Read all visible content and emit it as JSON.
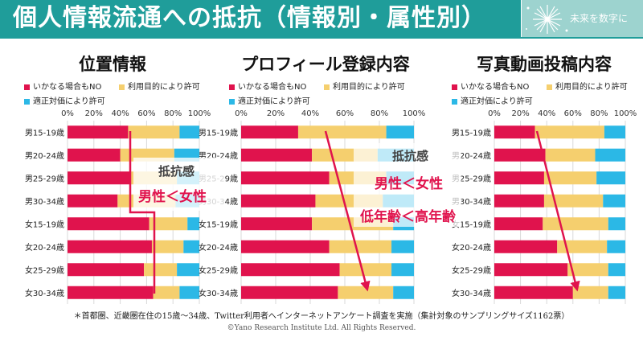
{
  "header": {
    "title": "個人情報流通への抵抗（情報別・属性別）",
    "logo_text": "未来を数字に"
  },
  "colors": {
    "brand": "#1f9d9a",
    "logo_bg": "#9dd3cf",
    "series": [
      "#e0134d",
      "#f5cf6e",
      "#2bb8e6"
    ],
    "annotation": "#e0134d"
  },
  "legend_items": [
    "いかなる場合もNO",
    "利用目的により許可",
    "適正対価により許可"
  ],
  "annotations": {
    "resistance": "抵抗感",
    "gender": "男性＜女性",
    "age": "低年齢＜高年齢"
  },
  "footer": {
    "note": "＊首都圏、近畿圏在住の15歳～34歳、Twitter利用者へインターネットアンケート調査を実施（集計対象のサンプリングサイズ1162票）",
    "copyright": "©Yano Research Institute Ltd. All Rights Reserved."
  },
  "chart_data": [
    {
      "type": "bar",
      "stacked": true,
      "orientation": "horizontal",
      "title": "位置情報",
      "categories": [
        "男15-19歳",
        "男20-24歳",
        "男25-29歳",
        "男30-34歳",
        "女15-19歳",
        "女20-24歳",
        "女25-29歳",
        "女30-34歳"
      ],
      "series": [
        {
          "name": "いかなる場合もNO",
          "values": [
            46,
            40,
            48,
            38,
            62,
            64,
            58,
            65
          ]
        },
        {
          "name": "利用目的により許可",
          "values": [
            39,
            41,
            35,
            44,
            29,
            24,
            25,
            20
          ]
        },
        {
          "name": "適正対価により許可",
          "values": [
            15,
            19,
            17,
            18,
            9,
            12,
            17,
            15
          ]
        }
      ],
      "xlim": [
        0,
        100
      ],
      "xticks": [
        "0%",
        "20%",
        "40%",
        "60%",
        "80%",
        "100%"
      ],
      "legend": "top"
    },
    {
      "type": "bar",
      "stacked": true,
      "orientation": "horizontal",
      "title": "プロフィール登録内容",
      "categories": [
        "男15-19歳",
        "男20-24歳",
        "男25-29歳",
        "男30-34歳",
        "女15-19歳",
        "女20-24歳",
        "女25-29歳",
        "女30-34歳"
      ],
      "series": [
        {
          "name": "いかなる場合もNO",
          "values": [
            33,
            41,
            51,
            43,
            41,
            51,
            57,
            56
          ]
        },
        {
          "name": "利用目的により許可",
          "values": [
            51,
            38,
            33,
            39,
            47,
            36,
            30,
            32
          ]
        },
        {
          "name": "適正対価により許可",
          "values": [
            16,
            21,
            16,
            18,
            12,
            13,
            13,
            12
          ]
        }
      ],
      "xlim": [
        0,
        100
      ],
      "xticks": [
        "0%",
        "20%",
        "40%",
        "60%",
        "80%",
        "100%"
      ],
      "legend": "top"
    },
    {
      "type": "bar",
      "stacked": true,
      "orientation": "horizontal",
      "title": "写真動画投稿内容",
      "categories": [
        "男15-19歳",
        "男20-24歳",
        "男25-29歳",
        "男30-34歳",
        "女15-19歳",
        "女20-24歳",
        "女25-29歳",
        "女30-34歳"
      ],
      "series": [
        {
          "name": "いかなる場合もNO",
          "values": [
            31,
            39,
            38,
            38,
            37,
            48,
            56,
            60
          ]
        },
        {
          "name": "利用目的により許可",
          "values": [
            53,
            38,
            40,
            45,
            50,
            38,
            31,
            27
          ]
        },
        {
          "name": "適正対価により許可",
          "values": [
            16,
            23,
            22,
            17,
            13,
            14,
            13,
            13
          ]
        }
      ],
      "xlim": [
        0,
        100
      ],
      "xticks": [
        "0%",
        "20%",
        "40%",
        "60%",
        "80%",
        "100%"
      ],
      "legend": "top"
    }
  ]
}
